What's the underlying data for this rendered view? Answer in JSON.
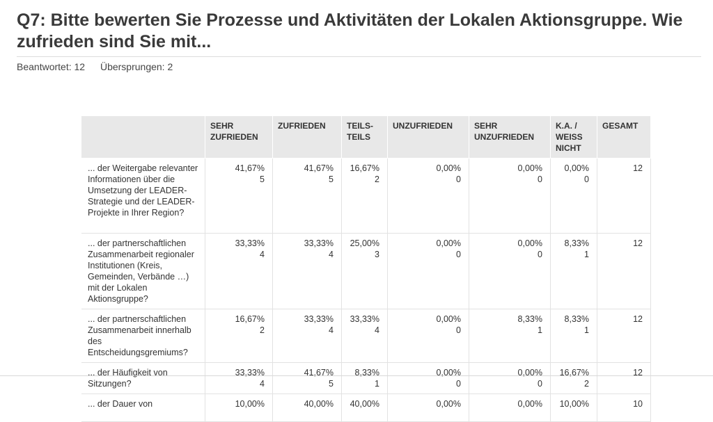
{
  "question": {
    "title": "Q7: Bitte bewerten Sie Prozesse und Aktivitäten der Lokalen Aktionsgruppe. Wie zufrieden sind Sie mit...",
    "answered": "Beantwortet: 12",
    "skipped": "Übersprungen: 2"
  },
  "table": {
    "headers": [
      "",
      "SEHR ZUFRIEDEN",
      "ZUFRIEDEN",
      "TEILS-TEILS",
      "UNZUFRIEDEN",
      "SEHR UNZUFRIEDEN",
      "K.A. / WEISS NICHT",
      "GESAMT"
    ],
    "rows": [
      {
        "label": "... der Weitergabe relevanter Informationen über die Umsetzung der LEADER-Strategie und der LEADER-Projekte in Ihrer Region?",
        "cells": [
          {
            "pct": "41,67%",
            "count": "5"
          },
          {
            "pct": "41,67%",
            "count": "5"
          },
          {
            "pct": "16,67%",
            "count": "2"
          },
          {
            "pct": "0,00%",
            "count": "0"
          },
          {
            "pct": "0,00%",
            "count": "0"
          },
          {
            "pct": "0,00%",
            "count": "0"
          }
        ],
        "total": "12"
      },
      {
        "label": "... der partnerschaftlichen Zusammenarbeit regionaler Institutionen (Kreis, Gemeinden, Verbände …) mit der Lokalen Aktionsgruppe?",
        "cells": [
          {
            "pct": "33,33%",
            "count": "4"
          },
          {
            "pct": "33,33%",
            "count": "4"
          },
          {
            "pct": "25,00%",
            "count": "3"
          },
          {
            "pct": "0,00%",
            "count": "0"
          },
          {
            "pct": "0,00%",
            "count": "0"
          },
          {
            "pct": "8,33%",
            "count": "1"
          }
        ],
        "total": "12"
      },
      {
        "label": "... der partnerschaftlichen Zusammenarbeit innerhalb des Entscheidungsgremiums?",
        "cells": [
          {
            "pct": "16,67%",
            "count": "2"
          },
          {
            "pct": "33,33%",
            "count": "4"
          },
          {
            "pct": "33,33%",
            "count": "4"
          },
          {
            "pct": "0,00%",
            "count": "0"
          },
          {
            "pct": "8,33%",
            "count": "1"
          },
          {
            "pct": "8,33%",
            "count": "1"
          }
        ],
        "total": "12"
      },
      {
        "label": "... der Häufigkeit von Sitzungen?",
        "cells": [
          {
            "pct": "33,33%",
            "count": "4"
          },
          {
            "pct": "41,67%",
            "count": "5"
          },
          {
            "pct": "8,33%",
            "count": "1"
          },
          {
            "pct": "0,00%",
            "count": "0"
          },
          {
            "pct": "0,00%",
            "count": "0"
          },
          {
            "pct": "16,67%",
            "count": "2"
          }
        ],
        "total": "12"
      },
      {
        "label": "... der Dauer von",
        "cells": [
          {
            "pct": "10,00%",
            "count": ""
          },
          {
            "pct": "40,00%",
            "count": ""
          },
          {
            "pct": "40,00%",
            "count": ""
          },
          {
            "pct": "0,00%",
            "count": ""
          },
          {
            "pct": "0,00%",
            "count": ""
          },
          {
            "pct": "10,00%",
            "count": ""
          }
        ],
        "total": "10"
      }
    ]
  }
}
